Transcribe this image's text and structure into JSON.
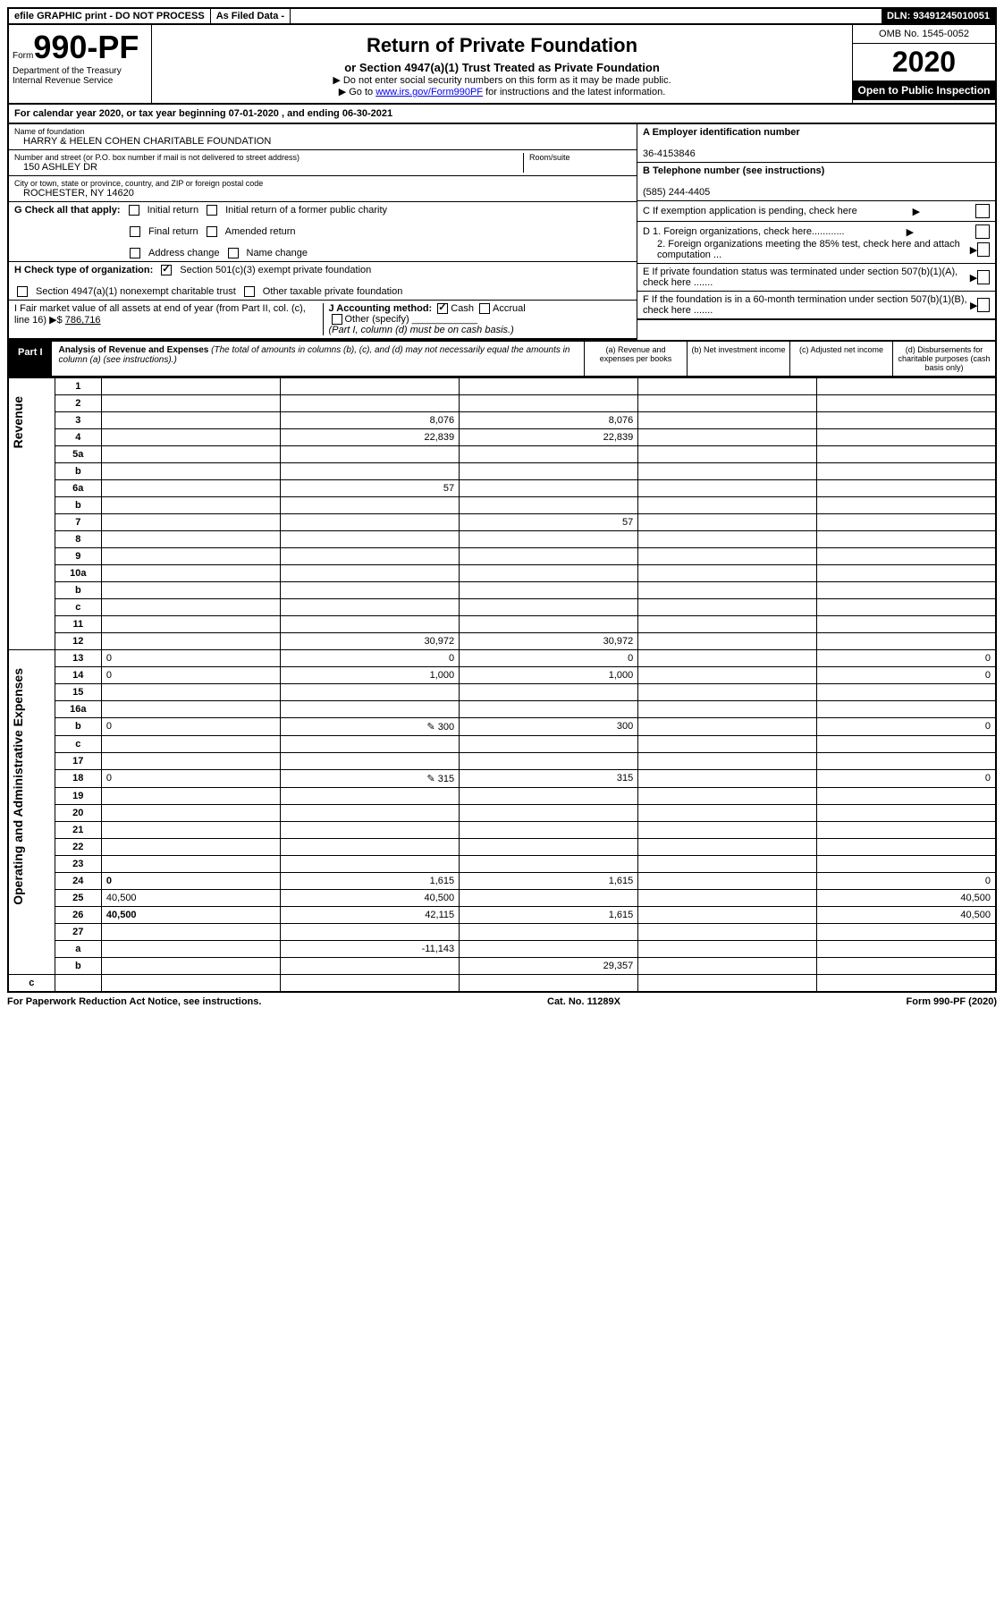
{
  "topbar": {
    "efile": "efile GRAPHIC print - DO NOT PROCESS",
    "asfiled": "As Filed Data -",
    "dln": "DLN: 93491245010051"
  },
  "header": {
    "form_prefix": "Form",
    "form_number": "990-PF",
    "dept": "Department of the Treasury",
    "irs": "Internal Revenue Service",
    "title": "Return of Private Foundation",
    "subtitle": "or Section 4947(a)(1) Trust Treated as Private Foundation",
    "warn1": "▶ Do not enter social security numbers on this form as it may be made public.",
    "warn2_pre": "▶ Go to ",
    "warn2_link": "www.irs.gov/Form990PF",
    "warn2_post": " for instructions and the latest information.",
    "omb": "OMB No. 1545-0052",
    "year": "2020",
    "open": "Open to Public Inspection"
  },
  "calyear": {
    "pre": "For calendar year 2020, or tax year beginning ",
    "begin": "07-01-2020",
    "mid": " , and ending ",
    "end": "06-30-2021"
  },
  "entity": {
    "name_label": "Name of foundation",
    "name": "HARRY & HELEN COHEN CHARITABLE FOUNDATION",
    "addr_label": "Number and street (or P.O. box number if mail is not delivered to street address)",
    "addr": "150 ASHLEY DR",
    "room_label": "Room/suite",
    "room": "",
    "city_label": "City or town, state or province, country, and ZIP or foreign postal code",
    "city": "ROCHESTER, NY  14620",
    "ein_label": "A Employer identification number",
    "ein": "36-4153846",
    "phone_label": "B Telephone number (see instructions)",
    "phone": "(585) 244-4405",
    "c_label": "C If exemption application is pending, check here",
    "d1": "D 1. Foreign organizations, check here............",
    "d2": "2. Foreign organizations meeting the 85% test, check here and attach computation ...",
    "e_label": "E If private foundation status was terminated under section 507(b)(1)(A), check here .......",
    "f_label": "F If the foundation is in a 60-month termination under section 507(b)(1)(B), check here ......."
  },
  "sectionG": {
    "label": "G Check all that apply:",
    "opts": [
      "Initial return",
      "Final return",
      "Address change",
      "Initial return of a former public charity",
      "Amended return",
      "Name change"
    ]
  },
  "sectionH": {
    "label": "H Check type of organization:",
    "opt1": "Section 501(c)(3) exempt private foundation",
    "opt2": "Section 4947(a)(1) nonexempt charitable trust",
    "opt3": "Other taxable private foundation"
  },
  "sectionI": {
    "label": "I Fair market value of all assets at end of year (from Part II, col. (c), line 16) ▶$",
    "value": "786,716"
  },
  "sectionJ": {
    "label": "J Accounting method:",
    "cash": "Cash",
    "accrual": "Accrual",
    "other": "Other (specify)",
    "note": "(Part I, column (d) must be on cash basis.)"
  },
  "part1": {
    "label": "Part I",
    "title": "Analysis of Revenue and Expenses",
    "note": "(The total of amounts in columns (b), (c), and (d) may not necessarily equal the amounts in column (a) (see instructions).)",
    "cols": {
      "a": "(a) Revenue and expenses per books",
      "b": "(b) Net investment income",
      "c": "(c) Adjusted net income",
      "d": "(d) Disbursements for charitable purposes (cash basis only)"
    }
  },
  "sideLabels": {
    "rev": "Revenue",
    "exp": "Operating and Administrative Expenses"
  },
  "rows": [
    {
      "n": "1",
      "d": "",
      "a": "",
      "b": "",
      "c": ""
    },
    {
      "n": "2",
      "d": "",
      "a": "",
      "b": "",
      "c": ""
    },
    {
      "n": "3",
      "d": "",
      "a": "8,076",
      "b": "8,076",
      "c": ""
    },
    {
      "n": "4",
      "d": "",
      "a": "22,839",
      "b": "22,839",
      "c": ""
    },
    {
      "n": "5a",
      "d": "",
      "a": "",
      "b": "",
      "c": ""
    },
    {
      "n": "b",
      "d": "",
      "a": "",
      "b": "",
      "c": ""
    },
    {
      "n": "6a",
      "d": "",
      "a": "57",
      "b": "",
      "c": ""
    },
    {
      "n": "b",
      "d": "",
      "a": "",
      "b": "",
      "c": ""
    },
    {
      "n": "7",
      "d": "",
      "a": "",
      "b": "57",
      "c": ""
    },
    {
      "n": "8",
      "d": "",
      "a": "",
      "b": "",
      "c": ""
    },
    {
      "n": "9",
      "d": "",
      "a": "",
      "b": "",
      "c": ""
    },
    {
      "n": "10a",
      "d": "",
      "a": "",
      "b": "",
      "c": ""
    },
    {
      "n": "b",
      "d": "",
      "a": "",
      "b": "",
      "c": ""
    },
    {
      "n": "c",
      "d": "",
      "a": "",
      "b": "",
      "c": ""
    },
    {
      "n": "11",
      "d": "",
      "a": "",
      "b": "",
      "c": ""
    },
    {
      "n": "12",
      "d": "",
      "a": "30,972",
      "b": "30,972",
      "c": "",
      "bold": true
    },
    {
      "n": "13",
      "d": "0",
      "a": "0",
      "b": "0",
      "c": ""
    },
    {
      "n": "14",
      "d": "0",
      "a": "1,000",
      "b": "1,000",
      "c": ""
    },
    {
      "n": "15",
      "d": "",
      "a": "",
      "b": "",
      "c": ""
    },
    {
      "n": "16a",
      "d": "",
      "a": "",
      "b": "",
      "c": ""
    },
    {
      "n": "b",
      "d": "0",
      "a": "300",
      "b": "300",
      "c": "",
      "icon": true
    },
    {
      "n": "c",
      "d": "",
      "a": "",
      "b": "",
      "c": ""
    },
    {
      "n": "17",
      "d": "",
      "a": "",
      "b": "",
      "c": ""
    },
    {
      "n": "18",
      "d": "0",
      "a": "315",
      "b": "315",
      "c": "",
      "icon": true
    },
    {
      "n": "19",
      "d": "",
      "a": "",
      "b": "",
      "c": ""
    },
    {
      "n": "20",
      "d": "",
      "a": "",
      "b": "",
      "c": ""
    },
    {
      "n": "21",
      "d": "",
      "a": "",
      "b": "",
      "c": ""
    },
    {
      "n": "22",
      "d": "",
      "a": "",
      "b": "",
      "c": ""
    },
    {
      "n": "23",
      "d": "",
      "a": "",
      "b": "",
      "c": ""
    },
    {
      "n": "24",
      "d": "0",
      "a": "1,615",
      "b": "1,615",
      "c": "",
      "bold": true
    },
    {
      "n": "25",
      "d": "40,500",
      "a": "40,500",
      "b": "",
      "c": ""
    },
    {
      "n": "26",
      "d": "40,500",
      "a": "42,115",
      "b": "1,615",
      "c": "",
      "bold": true
    },
    {
      "n": "27",
      "d": "",
      "a": "",
      "b": "",
      "c": ""
    },
    {
      "n": "a",
      "d": "",
      "a": "-11,143",
      "b": "",
      "c": "",
      "bold": true
    },
    {
      "n": "b",
      "d": "",
      "a": "",
      "b": "29,357",
      "c": "",
      "bold": true
    },
    {
      "n": "c",
      "d": "",
      "a": "",
      "b": "",
      "c": "",
      "bold": true
    }
  ],
  "footer": {
    "left": "For Paperwork Reduction Act Notice, see instructions.",
    "mid": "Cat. No. 11289X",
    "right": "Form 990-PF (2020)"
  }
}
